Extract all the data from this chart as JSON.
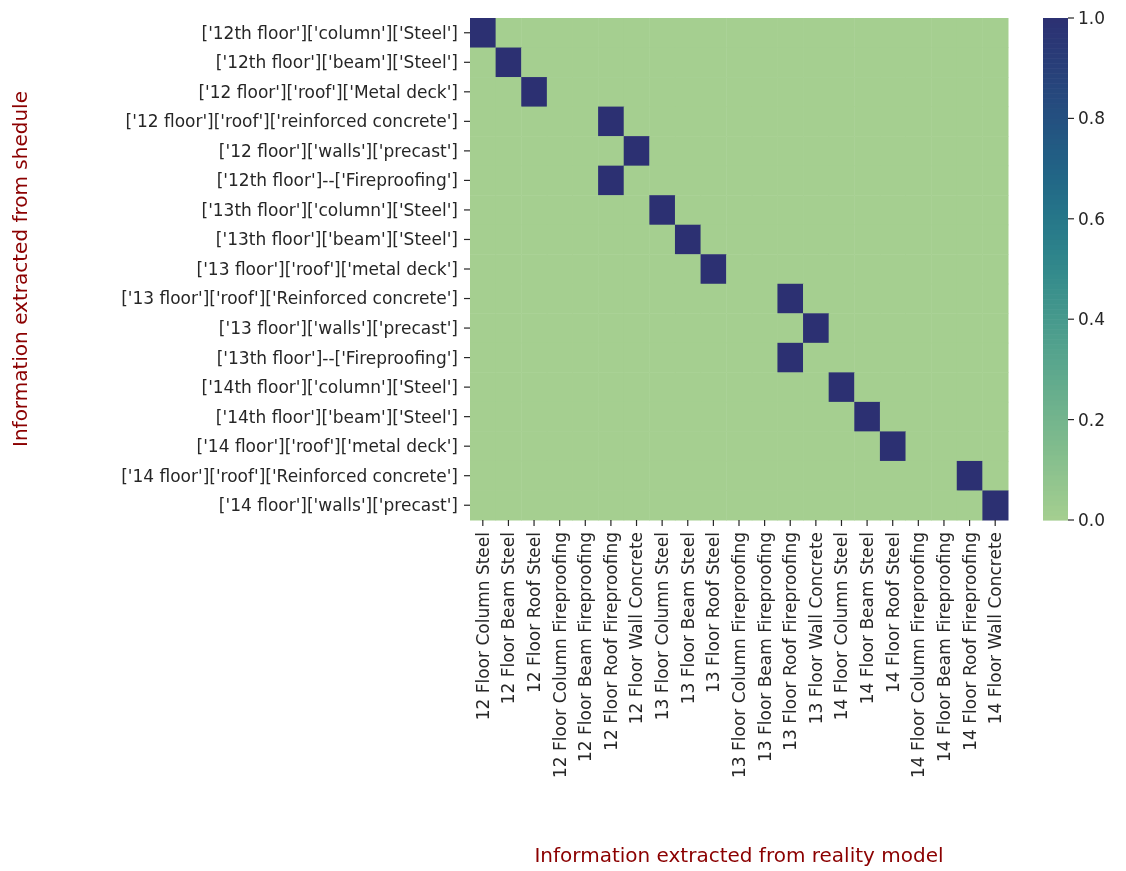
{
  "chart_data": {
    "type": "heatmap",
    "xlabel": "Information extracted from reality model",
    "ylabel": "Information extracted from shedule",
    "categories": [
      "12 Floor Column Steel",
      "12 Floor Beam Steel",
      "12 Floor Roof Steel",
      "12 Floor Column Fireproofing",
      "12 Floor Beam Fireproofing",
      "12 Floor Roof Fireproofing",
      "12 Floor Wall Concrete",
      "13 Floor Column Steel",
      "13 Floor Beam Steel",
      "13 Floor Roof Steel",
      "13 Floor Column Fireproofing",
      "13 Floor Beam Fireproofing",
      "13 Floor Roof Fireproofing",
      "13 Floor Wall Concrete",
      "14 Floor Column Steel",
      "14 Floor Beam Steel",
      "14 Floor Roof Steel",
      "14 Floor Column Fireproofing",
      "14 Floor Beam Fireproofing",
      "14 Floor Roof Fireproofing",
      "14 Floor Wall Concrete"
    ],
    "y_categories": [
      "['12th floor']['column']['Steel']",
      "['12th floor']['beam']['Steel']",
      "['12 floor']['roof']['Metal deck']",
      "['12 floor']['roof']['reinforced concrete']",
      "['12 floor']['walls']['precast']",
      "['12th floor']--['Fireproofing']",
      "['13th floor']['column']['Steel']",
      "['13th floor']['beam']['Steel']",
      "['13 floor']['roof']['metal deck']",
      "['13 floor']['roof']['Reinforced concrete']",
      "['13 floor']['walls']['precast']",
      "['13th floor']--['Fireproofing']",
      "['14th floor']['column']['Steel']",
      "['14th floor']['beam']['Steel']",
      "['14 floor']['roof']['metal deck']",
      "['14 floor']['roof']['Reinforced concrete']",
      "['14 floor']['walls']['precast']"
    ],
    "cells": [
      [
        1,
        0,
        0,
        0,
        0,
        0,
        0,
        0,
        0,
        0,
        0,
        0,
        0,
        0,
        0,
        0,
        0,
        0,
        0,
        0,
        0
      ],
      [
        0,
        1,
        0,
        0,
        0,
        0,
        0,
        0,
        0,
        0,
        0,
        0,
        0,
        0,
        0,
        0,
        0,
        0,
        0,
        0,
        0
      ],
      [
        0,
        0,
        1,
        0,
        0,
        0,
        0,
        0,
        0,
        0,
        0,
        0,
        0,
        0,
        0,
        0,
        0,
        0,
        0,
        0,
        0
      ],
      [
        0,
        0,
        0,
        0,
        0,
        1,
        0,
        0,
        0,
        0,
        0,
        0,
        0,
        0,
        0,
        0,
        0,
        0,
        0,
        0,
        0
      ],
      [
        0,
        0,
        0,
        0,
        0,
        0,
        1,
        0,
        0,
        0,
        0,
        0,
        0,
        0,
        0,
        0,
        0,
        0,
        0,
        0,
        0
      ],
      [
        0,
        0,
        0,
        0,
        0,
        1,
        0,
        0,
        0,
        0,
        0,
        0,
        0,
        0,
        0,
        0,
        0,
        0,
        0,
        0,
        0
      ],
      [
        0,
        0,
        0,
        0,
        0,
        0,
        0,
        1,
        0,
        0,
        0,
        0,
        0,
        0,
        0,
        0,
        0,
        0,
        0,
        0,
        0
      ],
      [
        0,
        0,
        0,
        0,
        0,
        0,
        0,
        0,
        1,
        0,
        0,
        0,
        0,
        0,
        0,
        0,
        0,
        0,
        0,
        0,
        0
      ],
      [
        0,
        0,
        0,
        0,
        0,
        0,
        0,
        0,
        0,
        1,
        0,
        0,
        0,
        0,
        0,
        0,
        0,
        0,
        0,
        0,
        0
      ],
      [
        0,
        0,
        0,
        0,
        0,
        0,
        0,
        0,
        0,
        0,
        0,
        0,
        1,
        0,
        0,
        0,
        0,
        0,
        0,
        0,
        0
      ],
      [
        0,
        0,
        0,
        0,
        0,
        0,
        0,
        0,
        0,
        0,
        0,
        0,
        0,
        1,
        0,
        0,
        0,
        0,
        0,
        0,
        0
      ],
      [
        0,
        0,
        0,
        0,
        0,
        0,
        0,
        0,
        0,
        0,
        0,
        0,
        1,
        0,
        0,
        0,
        0,
        0,
        0,
        0,
        0
      ],
      [
        0,
        0,
        0,
        0,
        0,
        0,
        0,
        0,
        0,
        0,
        0,
        0,
        0,
        0,
        1,
        0,
        0,
        0,
        0,
        0,
        0
      ],
      [
        0,
        0,
        0,
        0,
        0,
        0,
        0,
        0,
        0,
        0,
        0,
        0,
        0,
        0,
        0,
        1,
        0,
        0,
        0,
        0,
        0
      ],
      [
        0,
        0,
        0,
        0,
        0,
        0,
        0,
        0,
        0,
        0,
        0,
        0,
        0,
        0,
        0,
        0,
        1,
        0,
        0,
        0,
        0
      ],
      [
        0,
        0,
        0,
        0,
        0,
        0,
        0,
        0,
        0,
        0,
        0,
        0,
        0,
        0,
        0,
        0,
        0,
        0,
        0,
        1,
        0
      ],
      [
        0,
        0,
        0,
        0,
        0,
        0,
        0,
        0,
        0,
        0,
        0,
        0,
        0,
        0,
        0,
        0,
        0,
        0,
        0,
        0,
        1
      ]
    ],
    "clim": [
      0,
      1
    ],
    "cticks": [
      {
        "value": 0,
        "label": "0.0"
      },
      {
        "value": 0.2,
        "label": "0.2"
      },
      {
        "value": 0.4,
        "label": "0.4"
      },
      {
        "value": 0.6,
        "label": "0.6"
      },
      {
        "value": 0.8,
        "label": "0.8"
      },
      {
        "value": 1,
        "label": "1.0"
      }
    ]
  }
}
